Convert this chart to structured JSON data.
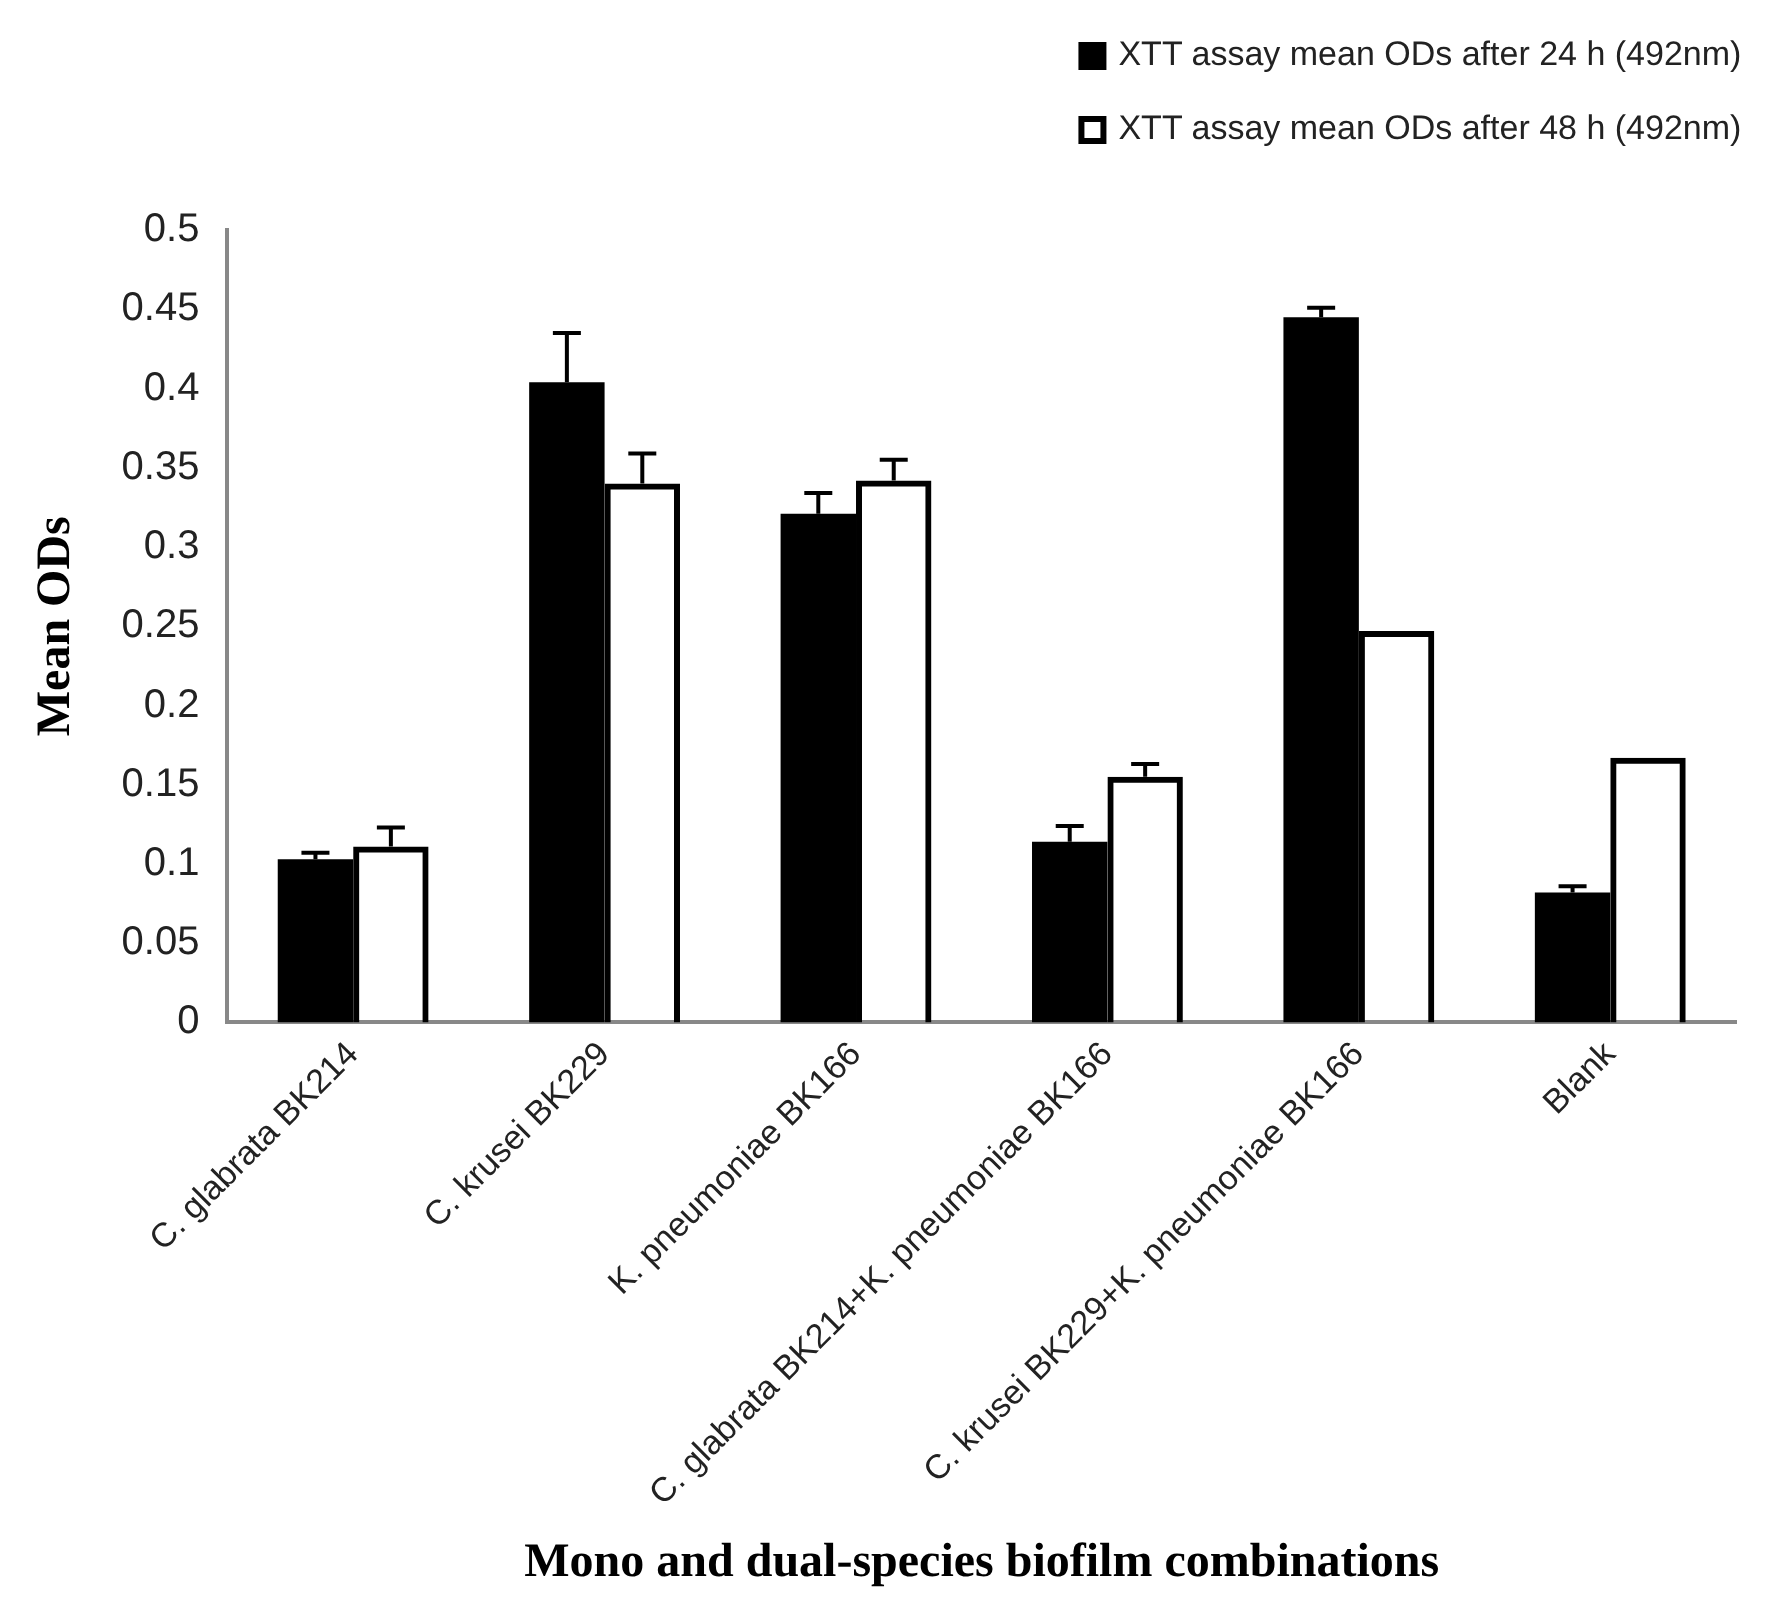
{
  "chart_data": {
    "type": "bar",
    "xlabel": "Mono and dual-species biofilm combinations",
    "ylabel": "Mean ODs",
    "categories": [
      "C. glabrata BK214",
      "C. krusei BK229",
      "K. pneumoniae BK166",
      "C. glabrata BK214+K. pneumoniae BK166",
      "C. krusei BK229+K. pneumoniae BK166",
      "Blank"
    ],
    "series": [
      {
        "name": "XTT assay mean ODs after 24 h (492nm)",
        "color": "#000000",
        "values": [
          0.103,
          0.404,
          0.321,
          0.114,
          0.445,
          0.082
        ],
        "errors": [
          [
            0.103,
            0.107
          ],
          [
            0.404,
            0.435
          ],
          [
            0.321,
            0.334
          ],
          [
            0.114,
            0.124
          ],
          [
            0.445,
            0.451
          ],
          [
            0.082,
            0.086
          ]
        ]
      },
      {
        "name": "XTT assay mean ODs after 48 h (492nm)",
        "color": "#000000",
        "values": [
          0.111,
          0.34,
          0.342,
          0.155,
          0.247,
          0.167
        ],
        "errors": [
          [
            0.111,
            0.123
          ],
          [
            0.34,
            0.359
          ],
          [
            0.342,
            0.355
          ],
          [
            0.155,
            0.163
          ],
          null,
          null
        ]
      }
    ],
    "ylim": [
      0,
      0.5
    ],
    "yticks": [
      0,
      0.05,
      0.1,
      0.15,
      0.2,
      0.25,
      0.3,
      0.35,
      0.4,
      0.45,
      0.5
    ],
    "grid": false,
    "legend": "top right"
  }
}
